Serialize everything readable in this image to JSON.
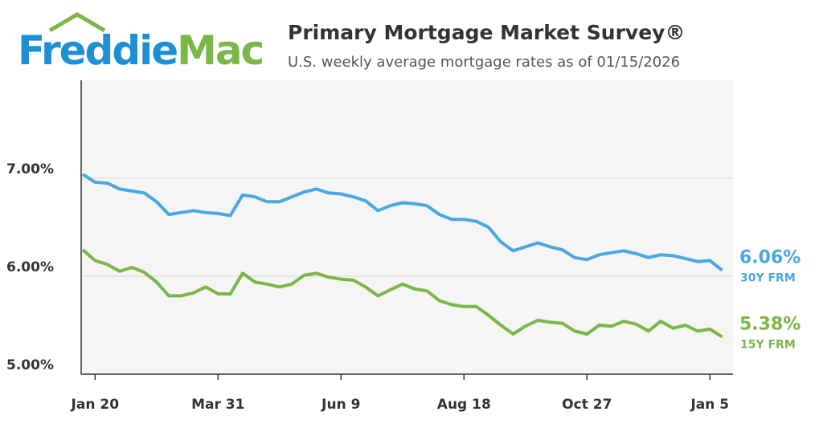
{
  "brand": [
    "Freddie",
    "Mac"
  ],
  "chart_data": {
    "type": "line",
    "title": "Primary Mortgage Market Survey®",
    "subtitle": "U.S. weekly average mortgage rates as of 01/15/2026",
    "categories": [
      null,
      "Jan 20",
      null,
      null,
      null,
      null,
      null,
      null,
      null,
      null,
      null,
      "Mar 31",
      null,
      null,
      null,
      null,
      null,
      null,
      null,
      null,
      null,
      "Jun 9",
      null,
      null,
      null,
      null,
      null,
      null,
      null,
      null,
      null,
      "Aug 18",
      null,
      null,
      null,
      null,
      null,
      null,
      null,
      null,
      null,
      "Oct 27",
      null,
      null,
      null,
      null,
      null,
      null,
      null,
      null,
      null,
      "Jan 5",
      null
    ],
    "ylim": [
      5,
      8
    ],
    "yticks": [
      {
        "value": 5,
        "label": "5.00%"
      },
      {
        "value": 6,
        "label": "6.00%"
      },
      {
        "value": 7,
        "label": "7.00%"
      }
    ],
    "grid": true,
    "series": [
      {
        "name": "30Y FRM",
        "color": "#4aa8e0",
        "end_label": "6.06%",
        "values": [
          7.04,
          6.96,
          6.95,
          6.89,
          6.87,
          6.85,
          6.76,
          6.63,
          6.65,
          6.67,
          6.65,
          6.64,
          6.62,
          6.83,
          6.81,
          6.76,
          6.76,
          6.81,
          6.86,
          6.89,
          6.85,
          6.84,
          6.81,
          6.77,
          6.67,
          6.72,
          6.75,
          6.74,
          6.72,
          6.63,
          6.58,
          6.58,
          6.56,
          6.5,
          6.35,
          6.26,
          6.3,
          6.34,
          6.3,
          6.27,
          6.19,
          6.17,
          6.22,
          6.24,
          6.26,
          6.23,
          6.19,
          6.22,
          6.21,
          6.18,
          6.15,
          6.16,
          6.06
        ]
      },
      {
        "name": "15Y FRM",
        "color": "#7ab648",
        "end_label": "5.38%",
        "values": [
          6.27,
          6.16,
          6.12,
          6.05,
          6.09,
          6.04,
          5.94,
          5.8,
          5.8,
          5.83,
          5.89,
          5.82,
          5.82,
          6.03,
          5.94,
          5.92,
          5.89,
          5.92,
          6.01,
          6.03,
          5.99,
          5.97,
          5.96,
          5.89,
          5.8,
          5.86,
          5.92,
          5.87,
          5.85,
          5.75,
          5.71,
          5.69,
          5.69,
          5.6,
          5.5,
          5.41,
          5.49,
          5.55,
          5.53,
          5.52,
          5.44,
          5.41,
          5.5,
          5.49,
          5.54,
          5.51,
          5.44,
          5.54,
          5.47,
          5.5,
          5.44,
          5.46,
          5.38
        ]
      }
    ]
  }
}
